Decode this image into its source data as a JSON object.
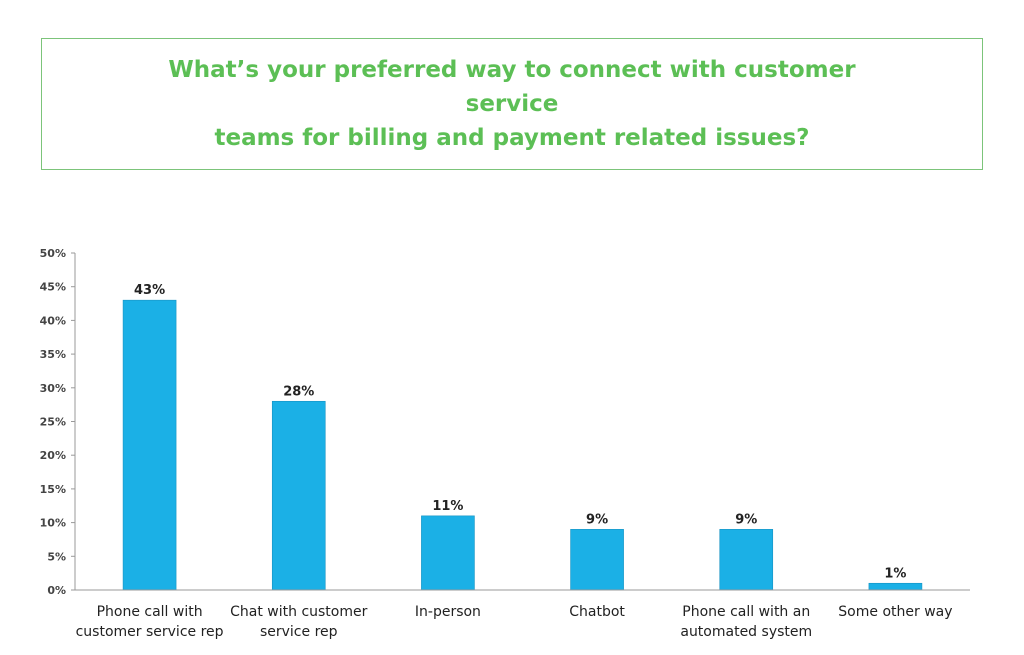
{
  "header": {
    "title_line1": "What’s your preferred way to connect with customer service",
    "title_line2": "teams for billing and payment related issues?"
  },
  "colors": {
    "bar": "#1bb0e6",
    "title": "#5cbf55",
    "title_border": "#7cc47a",
    "axis": "#999999"
  },
  "chart_data": {
    "type": "bar",
    "title": "What’s your preferred way to connect with customer service teams for billing and payment related issues?",
    "categories": [
      [
        "Phone call with",
        "customer service rep"
      ],
      [
        "Chat with customer",
        "service rep"
      ],
      [
        "In-person"
      ],
      [
        "Chatbot"
      ],
      [
        "Phone call with an",
        "automated system"
      ],
      [
        "Some other way"
      ]
    ],
    "values": [
      43,
      28,
      11,
      9,
      9,
      1
    ],
    "data_labels": [
      "43%",
      "28%",
      "11%",
      "9%",
      "9%",
      "1%"
    ],
    "ylim": [
      0,
      50
    ],
    "yticks": [
      0,
      5,
      10,
      15,
      20,
      25,
      30,
      35,
      40,
      45,
      50
    ],
    "ytick_labels": [
      "0%",
      "5%",
      "10%",
      "15%",
      "20%",
      "25%",
      "30%",
      "35%",
      "40%",
      "45%",
      "50%"
    ],
    "grid": false,
    "legend": "none"
  }
}
